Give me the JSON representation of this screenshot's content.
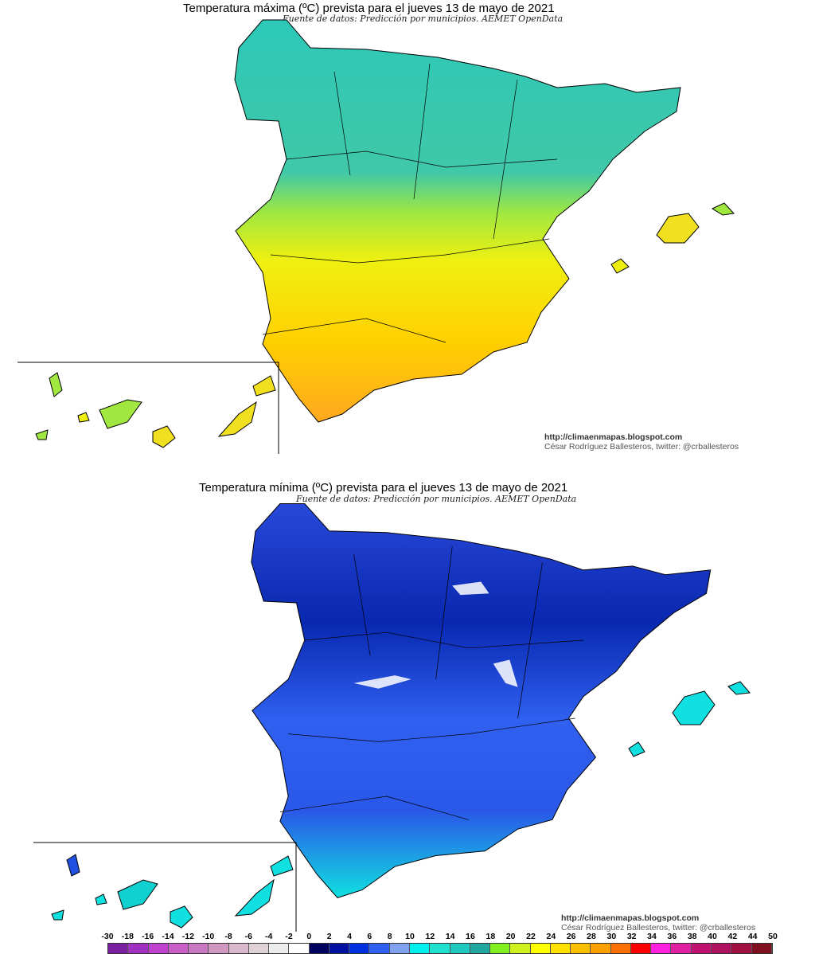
{
  "maps": [
    {
      "title": "Temperatura máxima (ºC) prevista para el jueves 13 de mayo de 2021",
      "source": "Fuente de datos: Predicción por municipios. AEMET OpenData",
      "credit_url": "http://climaenmapas.blogspot.com",
      "credit_author": "César Rodríguez Ballesteros, twitter: @crballesteros",
      "palette": [
        "#2cc8b8",
        "#40d0b0",
        "#a0e840",
        "#f0f010",
        "#ffd000",
        "#ffa020"
      ]
    },
    {
      "title": "Temperatura mínima (ºC) prevista para el jueves 13 de mayo de 2021",
      "source": "Fuente de datos: Predicción por municipios. AEMET OpenData",
      "credit_url": "http://climaenmapas.blogspot.com",
      "credit_author": "César Rodríguez Ballesteros, twitter: @crballesteros",
      "palette": [
        "#1030c0",
        "#0828b0",
        "#2050e0",
        "#3060f0",
        "#5080f0",
        "#10e0e0"
      ]
    }
  ],
  "legend": {
    "labels": [
      "-30",
      "-18",
      "-16",
      "-14",
      "-12",
      "-10",
      "-8",
      "-6",
      "-4",
      "-2",
      "0",
      "2",
      "4",
      "6",
      "8",
      "10",
      "12",
      "14",
      "16",
      "18",
      "20",
      "22",
      "24",
      "26",
      "28",
      "30",
      "32",
      "34",
      "36",
      "38",
      "40",
      "42",
      "44",
      "50"
    ],
    "colors": [
      "#7a1fa2",
      "#a030c0",
      "#c040d0",
      "#c860c8",
      "#c878c0",
      "#d098c0",
      "#d8b8cc",
      "#e0d0d8",
      "#ececec",
      "#ffffff",
      "#000060",
      "#0010a0",
      "#0030e0",
      "#3060f0",
      "#80a0f0",
      "#00f0f0",
      "#20e0d0",
      "#20c8c0",
      "#20a8a0",
      "#80f020",
      "#d0f020",
      "#ffff00",
      "#ffe000",
      "#ffc000",
      "#ffa000",
      "#ff7000",
      "#ff0000",
      "#ff20e0",
      "#e020a0",
      "#c01070",
      "#b01060",
      "#a01040",
      "#801020"
    ]
  }
}
